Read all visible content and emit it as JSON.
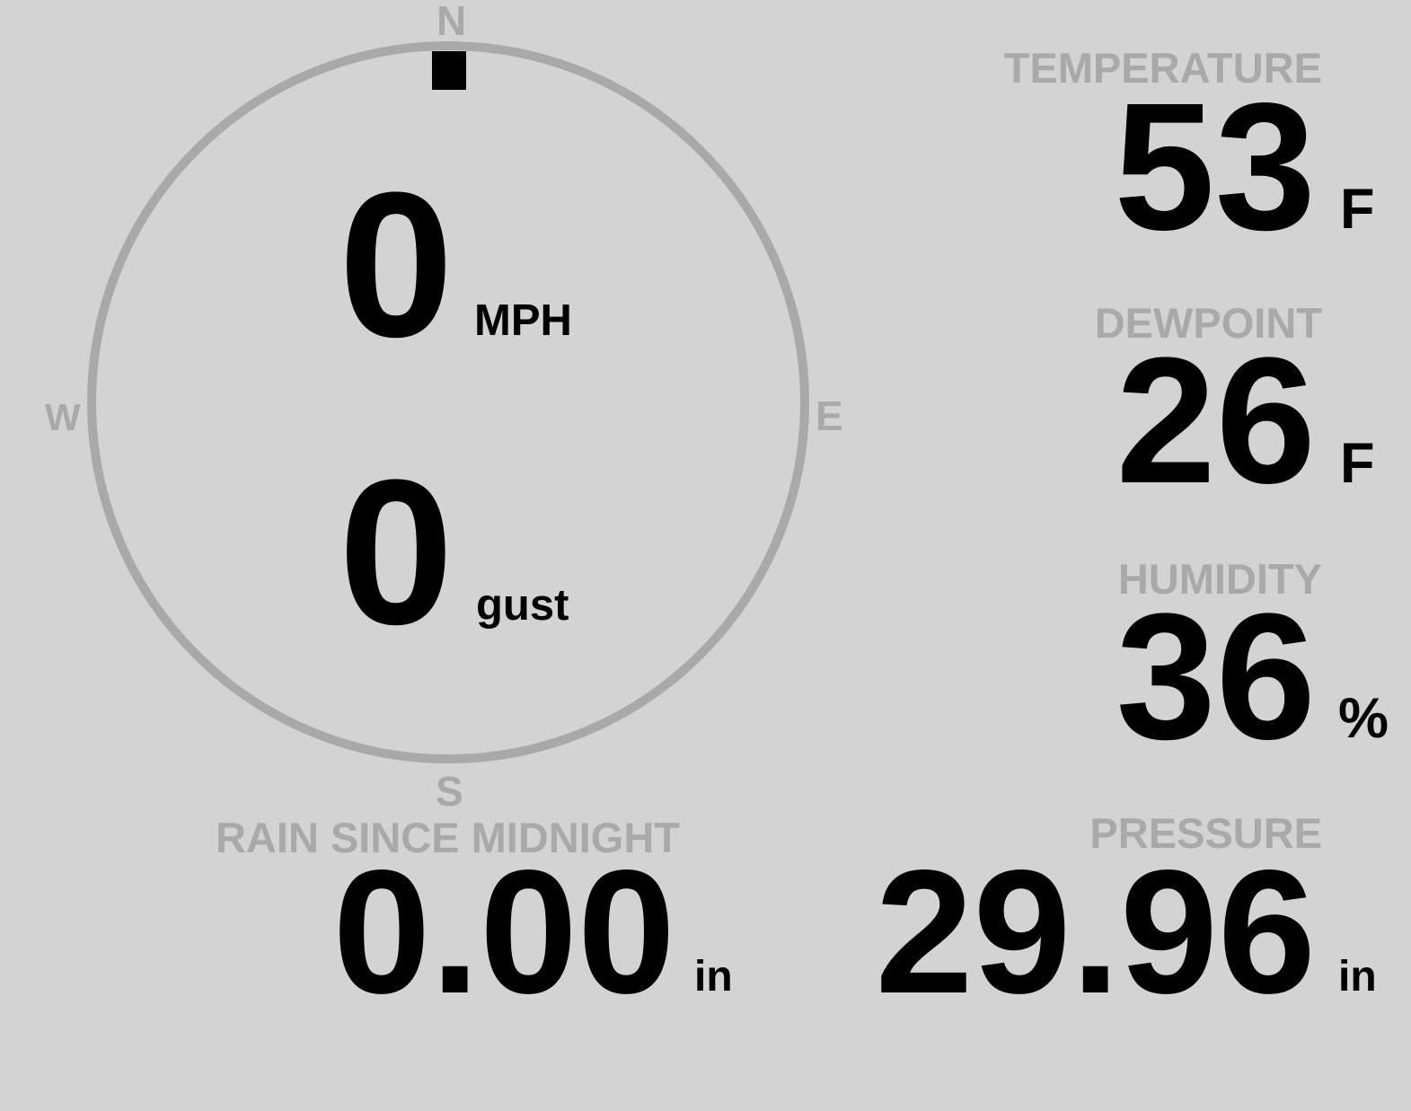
{
  "colors": {
    "background": "#d3d3d3",
    "label": "#a9a9a9",
    "value": "#000000"
  },
  "wind": {
    "direction_degrees": 0,
    "speed": "0",
    "speed_unit": "MPH",
    "gust": "0",
    "gust_unit": "gust",
    "compass": {
      "n": "N",
      "e": "E",
      "s": "S",
      "w": "W"
    }
  },
  "temperature": {
    "label": "TEMPERATURE",
    "value": "53",
    "unit": "F"
  },
  "dewpoint": {
    "label": "DEWPOINT",
    "value": "26",
    "unit": "F"
  },
  "humidity": {
    "label": "HUMIDITY",
    "value": "36",
    "unit": "%"
  },
  "pressure": {
    "label": "PRESSURE",
    "value": "29.96",
    "unit": "in"
  },
  "rain": {
    "label": "RAIN SINCE MIDNIGHT",
    "value": "0.00",
    "unit": "in"
  }
}
